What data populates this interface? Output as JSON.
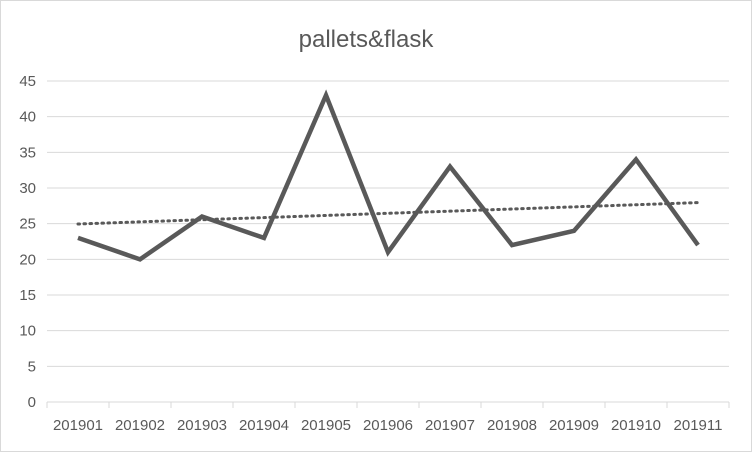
{
  "chart_data": {
    "type": "line",
    "title": "pallets&flask",
    "xlabel": "",
    "ylabel": "",
    "categories": [
      "201901",
      "201902",
      "201903",
      "201904",
      "201905",
      "201906",
      "201907",
      "201908",
      "201909",
      "201910",
      "201911"
    ],
    "series": [
      {
        "values": [
          23,
          20,
          26,
          23,
          43,
          21,
          33,
          22,
          24,
          34,
          22
        ],
        "color": "#595959",
        "style": "solid"
      }
    ],
    "trendline": {
      "type": "linear",
      "color": "#595959",
      "style": "dotted"
    },
    "ylim": [
      0,
      45
    ],
    "yticks": [
      0,
      5,
      10,
      15,
      20,
      25,
      30,
      35,
      40,
      45
    ],
    "grid": true,
    "legend": "none"
  }
}
